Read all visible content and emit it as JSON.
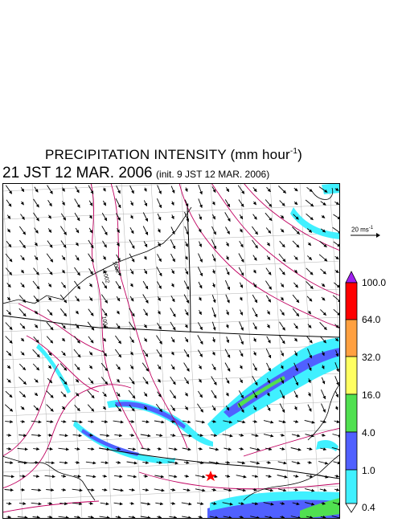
{
  "title": {
    "main": "PRECIPITATION INTENSITY (mm hour",
    "unit_exponent": "-1",
    "close": ")"
  },
  "subtitle": {
    "valid": "21 JST 12 MAR. 2006",
    "init": "(init. 9 JST 12 MAR. 2006)"
  },
  "wind_reference": {
    "label": "20 ms",
    "exponent": "-1"
  },
  "contour_labels": [
    "1002",
    "1002",
    "1004"
  ],
  "colorbar": {
    "levels": [
      "100.0",
      "64.0",
      "32.0",
      "16.0",
      "4.0",
      "1.0",
      "0.4"
    ],
    "colors": {
      "over": "#a020f0",
      "64-100": "#ff0000",
      "32-64": "#ffa040",
      "16-32": "#ffff60",
      "4-16": "#50e050",
      "1-4": "#5060ff",
      "0.4-1": "#40f0ff",
      "under": "#ffffff"
    }
  },
  "map_colors": {
    "coast": "#000000",
    "grid": "#b0b0b0",
    "isobar": "#c00060",
    "marker": "#ff0000"
  }
}
